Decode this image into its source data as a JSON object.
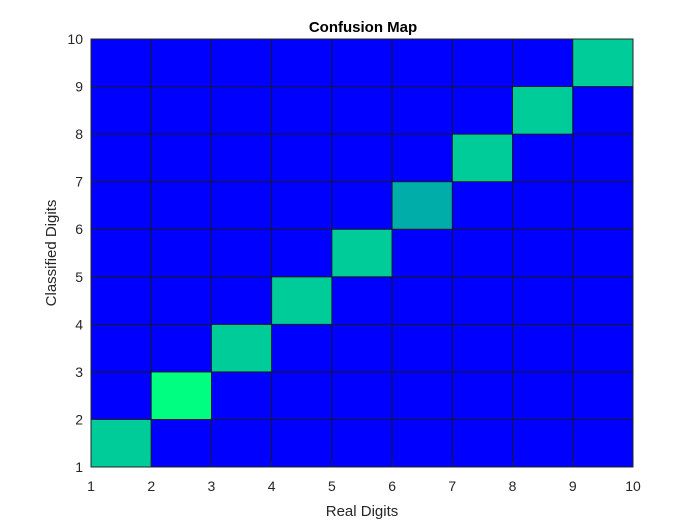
{
  "chart_data": {
    "type": "heatmap",
    "title": "Confusion Map",
    "xlabel": "Real Digits",
    "ylabel": "Classified Digits",
    "xlim": [
      1,
      10
    ],
    "ylim": [
      1,
      10
    ],
    "x_ticks": [
      "1",
      "2",
      "3",
      "4",
      "5",
      "6",
      "7",
      "8",
      "9",
      "10"
    ],
    "y_ticks": [
      "1",
      "2",
      "3",
      "4",
      "5",
      "6",
      "7",
      "8",
      "9",
      "10"
    ],
    "colormap": "winter",
    "color_range": [
      0,
      1
    ],
    "colors": {
      "low": "#0000ff",
      "high": "#00ff80",
      "grid": "#1a1a1a"
    },
    "grid": true,
    "values": [
      [
        0.8,
        0,
        0,
        0,
        0,
        0,
        0,
        0,
        0
      ],
      [
        0,
        1.0,
        0,
        0,
        0,
        0,
        0,
        0,
        0
      ],
      [
        0,
        0,
        0.8,
        0,
        0,
        0,
        0,
        0,
        0
      ],
      [
        0,
        0,
        0,
        0.8,
        0,
        0,
        0,
        0,
        0
      ],
      [
        0,
        0,
        0,
        0,
        0.8,
        0,
        0,
        0,
        0
      ],
      [
        0,
        0,
        0,
        0,
        0,
        0.68,
        0,
        0,
        0
      ],
      [
        0,
        0,
        0,
        0,
        0,
        0,
        0.8,
        0,
        0
      ],
      [
        0,
        0,
        0,
        0,
        0,
        0,
        0,
        0.8,
        0
      ],
      [
        0,
        0,
        0,
        0,
        0,
        0,
        0,
        0,
        0.8
      ]
    ]
  }
}
